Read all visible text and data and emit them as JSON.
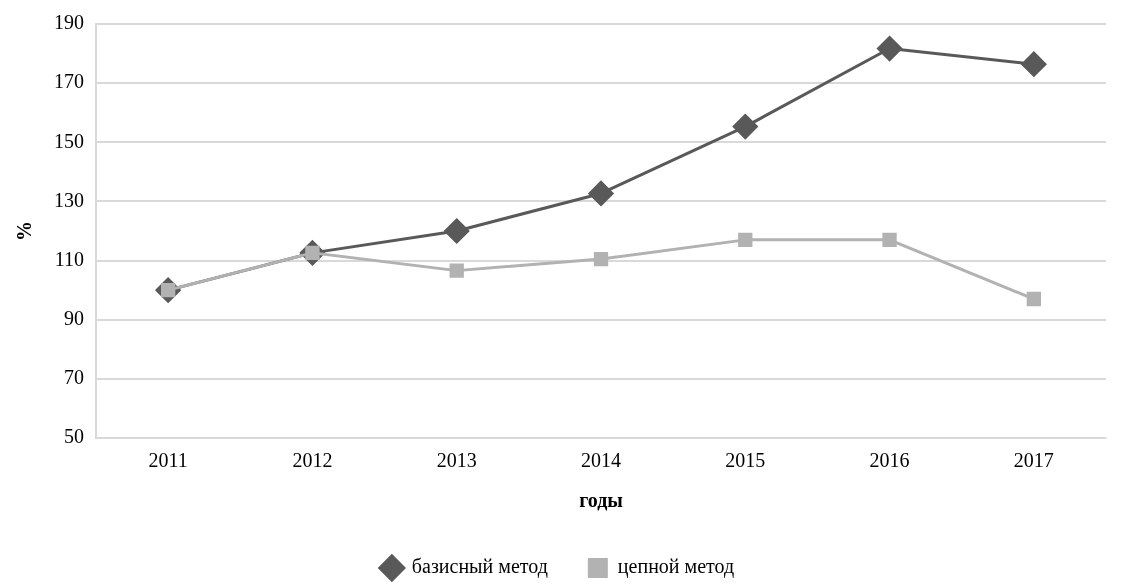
{
  "chart_data": {
    "type": "line",
    "xlabel": "годы",
    "ylabel": "%",
    "categories": [
      "2011",
      "2012",
      "2013",
      "2014",
      "2015",
      "2016",
      "2017"
    ],
    "series": [
      {
        "name": "базисный метод",
        "color": "#595959",
        "marker": "diamond",
        "values": [
          100,
          112.6,
          120,
          132.7,
          155.3,
          181.7,
          176.4
        ]
      },
      {
        "name": "цепной метод",
        "color": "#b2b2b2",
        "marker": "square",
        "values": [
          100,
          112.6,
          106.6,
          110.5,
          117,
          117,
          97
        ]
      }
    ],
    "ylim": [
      50,
      190
    ],
    "yticks": [
      50,
      70,
      90,
      110,
      130,
      150,
      170,
      190
    ],
    "grid": "y",
    "legend": "bottom",
    "line_style": "solid"
  }
}
